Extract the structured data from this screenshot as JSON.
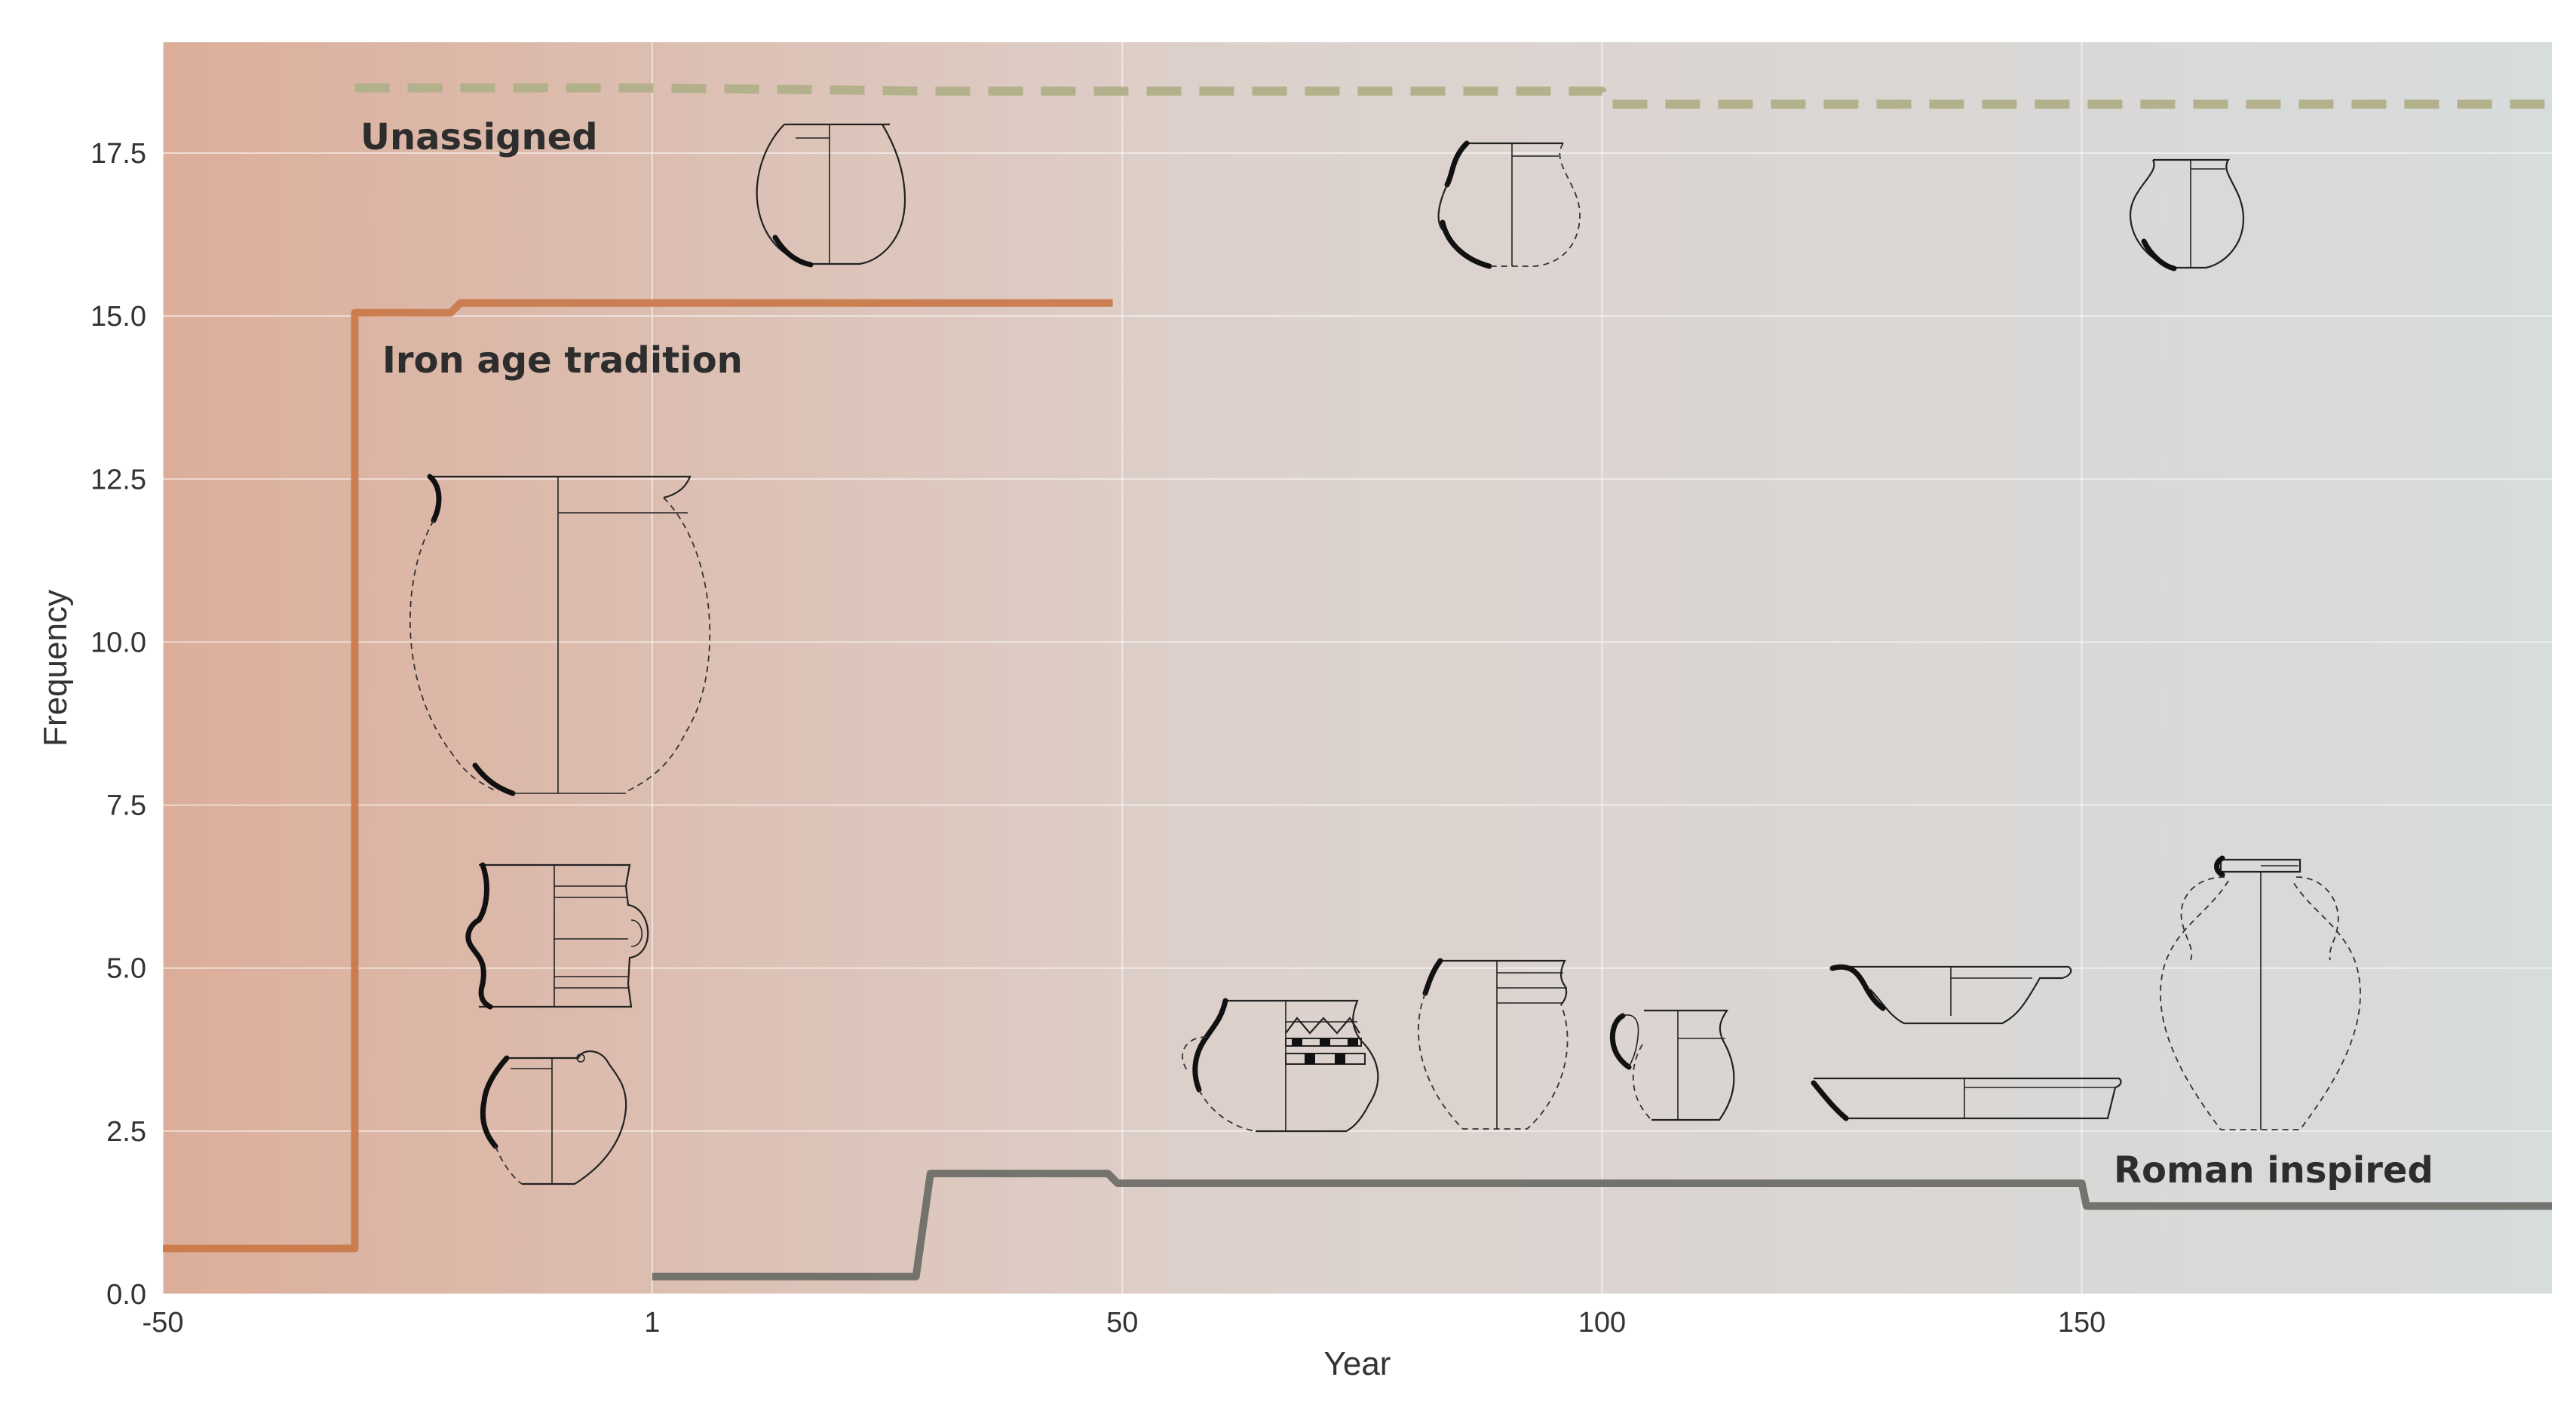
{
  "chart_data": {
    "type": "line",
    "title": "",
    "xlabel": "Year",
    "ylabel": "Frequency",
    "xlim": [
      -50,
      199
    ],
    "ylim": [
      0,
      19.2
    ],
    "x_ticks": [
      -50,
      1,
      50,
      100,
      150
    ],
    "x_tick_labels": [
      "-50",
      "1",
      "50",
      "100",
      "150"
    ],
    "y_ticks": [
      0,
      2.5,
      5,
      7.5,
      10,
      12.5,
      15,
      17.5
    ],
    "y_tick_labels": [
      "0.0",
      "2.5",
      "5.0",
      "7.5",
      "10.0",
      "12.5",
      "15.0",
      "17.5"
    ],
    "grid": true,
    "legend": "none",
    "series": [
      {
        "name": "Unassigned",
        "color": "#b3b08c",
        "dash": true,
        "points": [
          [
            -30,
            18.5
          ],
          [
            0,
            18.5
          ],
          [
            30,
            18.45
          ],
          [
            100,
            18.45
          ],
          [
            100.5,
            18.25
          ],
          [
            199,
            18.25
          ]
        ]
      },
      {
        "name": "Iron age tradition",
        "color": "#c97a4c",
        "dash": false,
        "points": [
          [
            -50,
            0.7
          ],
          [
            -30,
            0.7
          ],
          [
            -30,
            15.05
          ],
          [
            -20,
            15.05
          ],
          [
            -19,
            15.2
          ],
          [
            49,
            15.2
          ]
        ]
      },
      {
        "name": "Roman inspired",
        "color": "#6e6e68",
        "dash": false,
        "points": [
          [
            1,
            0.27
          ],
          [
            28.5,
            0.27
          ],
          [
            30,
            1.85
          ],
          [
            48.5,
            1.85
          ],
          [
            49.5,
            1.7
          ],
          [
            150,
            1.7
          ],
          [
            150.5,
            1.35
          ],
          [
            199,
            1.35
          ]
        ]
      }
    ]
  },
  "colors": {
    "background_left": "#dcae9a",
    "background_mid": "#ddd1cc",
    "background_right": "#d7dcdc"
  },
  "icons": [
    "pottery-vessel-drawings"
  ]
}
